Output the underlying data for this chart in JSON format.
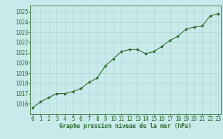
{
  "x": [
    0,
    1,
    2,
    3,
    4,
    5,
    6,
    7,
    8,
    9,
    10,
    11,
    12,
    13,
    14,
    15,
    16,
    17,
    18,
    19,
    20,
    21,
    22,
    23
  ],
  "y": [
    1015.6,
    1016.2,
    1016.6,
    1017.0,
    1017.0,
    1017.2,
    1017.5,
    1018.1,
    1018.5,
    1019.7,
    1020.4,
    1021.1,
    1021.3,
    1021.3,
    1020.9,
    1021.1,
    1021.6,
    1022.2,
    1022.6,
    1023.3,
    1023.5,
    1023.6,
    1024.6,
    1024.8
  ],
  "line_color": "#2d6a2d",
  "marker": "*",
  "marker_size": 3.0,
  "bg_color": "#c8eaea",
  "grid_color": "#aed4d4",
  "plot_bg": "#c8eaea",
  "xlabel": "Graphe pression niveau de la mer (hPa)",
  "xlabel_color": "#2d6a2d",
  "tick_color": "#2d6a2d",
  "ylim": [
    1015.0,
    1025.6
  ],
  "yticks": [
    1016,
    1017,
    1018,
    1019,
    1020,
    1021,
    1022,
    1023,
    1024,
    1025
  ],
  "xticks": [
    0,
    1,
    2,
    3,
    4,
    5,
    6,
    7,
    8,
    9,
    10,
    11,
    12,
    13,
    14,
    15,
    16,
    17,
    18,
    19,
    20,
    21,
    22,
    23
  ],
  "xlim": [
    -0.3,
    23.3
  ],
  "xlabel_fontsize": 6.0,
  "tick_fontsize": 5.5
}
